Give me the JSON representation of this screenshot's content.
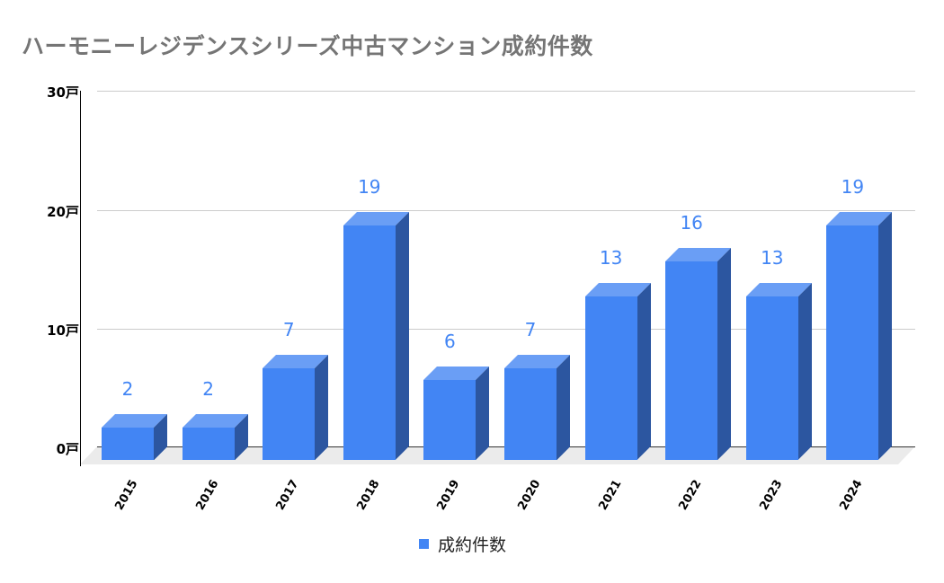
{
  "chart_data": {
    "type": "bar",
    "style": "3d-column",
    "title": "ハーモニーレジデンスシリーズ中古マンション成約件数",
    "categories": [
      "2015",
      "2016",
      "2017",
      "2018",
      "2019",
      "2020",
      "2021",
      "2022",
      "2023",
      "2024"
    ],
    "series": [
      {
        "name": "成約件数",
        "values": [
          2,
          2,
          7,
          19,
          6,
          7,
          13,
          16,
          13,
          19
        ],
        "color": "#4285f4"
      }
    ],
    "xlabel": "",
    "ylabel": "",
    "ylim": [
      0,
      30
    ],
    "yticks": [
      "0戸",
      "10戸",
      "20戸",
      "30戸"
    ],
    "grid": true,
    "legend_position": "bottom",
    "data_labels": true
  },
  "title": "ハーモニーレジデンスシリーズ中古マンション成約件数",
  "yaxis": {
    "ticks": [
      "0戸",
      "10戸",
      "20戸",
      "30戸"
    ]
  },
  "legend": {
    "label": "成約件数",
    "color": "#4285f4"
  }
}
